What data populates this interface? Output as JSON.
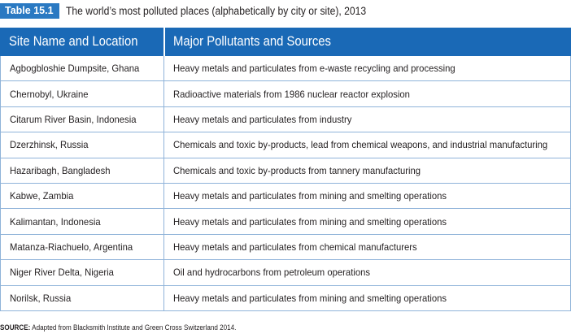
{
  "caption": {
    "label": "Table 15.1",
    "title": "The world’s most polluted places (alphabetically by city or site), 2013"
  },
  "table": {
    "headers": [
      "Site Name and Location",
      "Major Pollutants and Sources"
    ],
    "rows": [
      [
        "Agbogbloshie Dumpsite, Ghana",
        "Heavy metals and particulates from e-waste recycling and processing"
      ],
      [
        "Chernobyl, Ukraine",
        "Radioactive materials from 1986 nuclear reactor explosion"
      ],
      [
        "Citarum River Basin, Indonesia",
        "Heavy metals and particulates from industry"
      ],
      [
        "Dzerzhinsk, Russia",
        "Chemicals and toxic by-products, lead from chemical weapons, and industrial manufacturing"
      ],
      [
        "Hazaribagh, Bangladesh",
        "Chemicals and toxic by-products from tannery manufacturing"
      ],
      [
        "Kabwe, Zambia",
        "Heavy metals and particulates from mining and smelting operations"
      ],
      [
        "Kalimantan, Indonesia",
        "Heavy metals and particulates from mining and smelting operations"
      ],
      [
        "Matanza-Riachuelo, Argentina",
        "Heavy metals and particulates from chemical manufacturers"
      ],
      [
        "Niger River Delta, Nigeria",
        "Oil and hydrocarbons from petroleum operations"
      ],
      [
        "Norilsk, Russia",
        "Heavy metals and particulates from mining and smelting operations"
      ]
    ]
  },
  "source": {
    "label": "SOURCE:",
    "text": "Adapted from Blacksmith Institute and Green Cross Switzerland 2014."
  },
  "colors": {
    "accent": "#1a69b6",
    "tag": "#2a79c2",
    "grid": "#8fb3d9"
  }
}
